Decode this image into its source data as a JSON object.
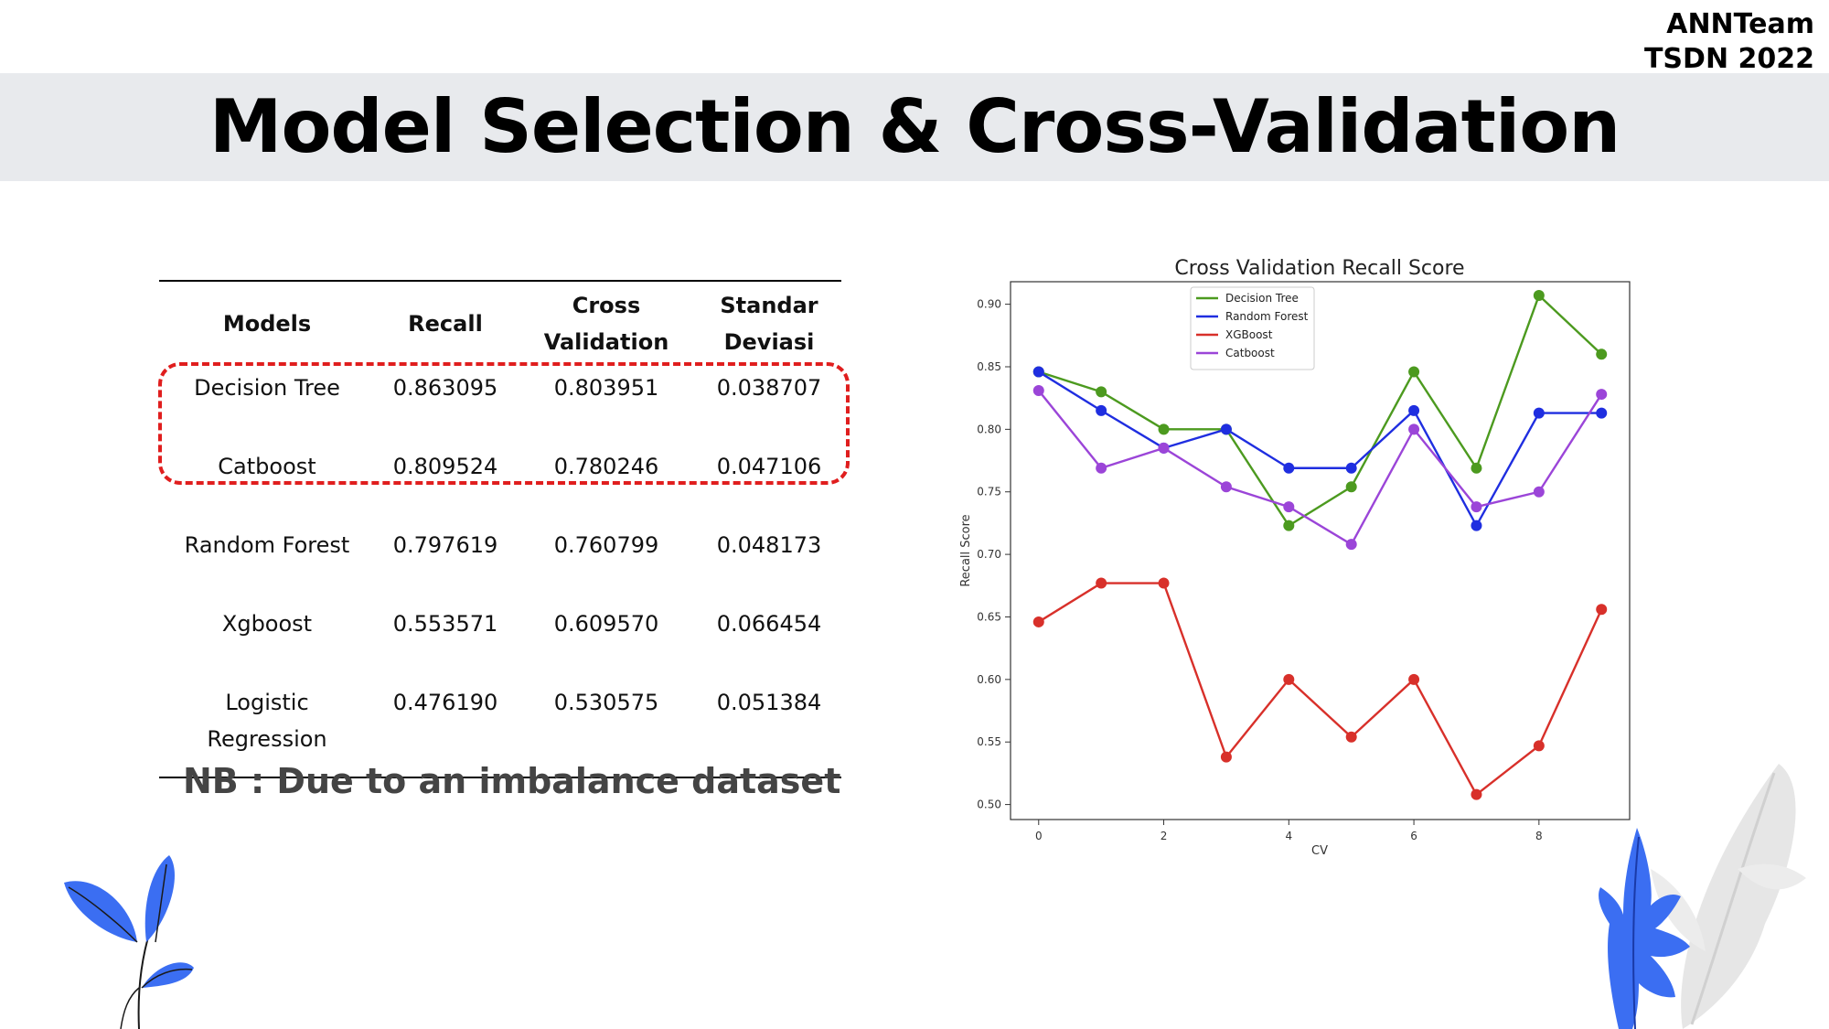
{
  "header": {
    "team_line1": "ANNTeam",
    "team_line2": "TSDN 2022"
  },
  "title": "Model Selection & Cross-Validation",
  "table": {
    "headers": [
      [
        "Models"
      ],
      [
        "Recall"
      ],
      [
        "Cross",
        "Validation"
      ],
      [
        "Standar",
        "Deviasi"
      ]
    ],
    "rows": [
      [
        "Decision Tree",
        "0.863095",
        "0.803951",
        "0.038707"
      ],
      [
        "Catboost",
        "0.809524",
        "0.780246",
        "0.047106"
      ],
      [
        "Random Forest",
        "0.797619",
        "0.760799",
        "0.048173"
      ],
      [
        "Xgboost",
        "0.553571",
        "0.609570",
        "0.066454"
      ],
      [
        "Logistic Regression",
        "0.476190",
        "0.530575",
        "0.051384"
      ]
    ]
  },
  "note": "NB : Due to an imbalance dataset",
  "chart_data": {
    "type": "line",
    "title": "Cross Validation Recall Score",
    "xlabel": "CV",
    "ylabel": "Recall Score",
    "x": [
      0,
      1,
      2,
      3,
      4,
      5,
      6,
      7,
      8,
      9
    ],
    "xticks": [
      0,
      2,
      4,
      6,
      8
    ],
    "yticks": [
      0.5,
      0.55,
      0.6,
      0.65,
      0.7,
      0.75,
      0.8,
      0.85,
      0.9
    ],
    "xlim": [
      -0.45,
      9.45
    ],
    "ylim": [
      0.488,
      0.918
    ],
    "legend_position": "top-center",
    "grid": false,
    "series": [
      {
        "name": "Decision Tree",
        "color": "#4c9a1f",
        "values": [
          0.846,
          0.83,
          0.8,
          0.8,
          0.723,
          0.754,
          0.846,
          0.769,
          0.907,
          0.86
        ]
      },
      {
        "name": "Random Forest",
        "color": "#1f2ee0",
        "values": [
          0.846,
          0.815,
          0.785,
          0.8,
          0.769,
          0.769,
          0.815,
          0.723,
          0.813,
          0.813
        ]
      },
      {
        "name": "XGBoost",
        "color": "#d8302a",
        "values": [
          0.646,
          0.677,
          0.677,
          0.538,
          0.6,
          0.554,
          0.6,
          0.508,
          0.547,
          0.656
        ]
      },
      {
        "name": "Catboost",
        "color": "#9b45d8",
        "values": [
          0.831,
          0.769,
          0.785,
          0.754,
          0.738,
          0.708,
          0.8,
          0.738,
          0.75,
          0.828
        ]
      }
    ]
  }
}
